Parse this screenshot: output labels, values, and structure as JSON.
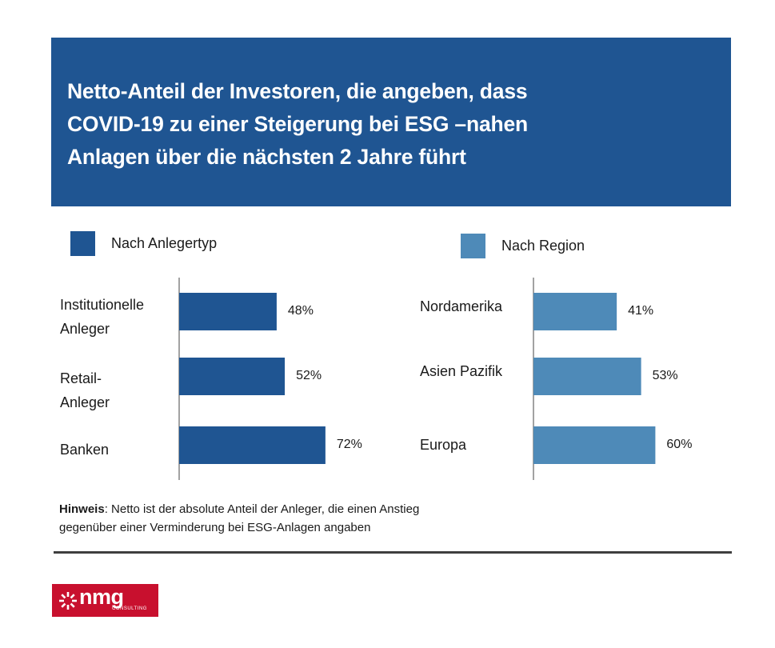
{
  "header": {
    "title_line1": "Netto-Anteil der Investoren, die angeben, dass",
    "title_line2": "COVID-19 zu einer Steigerung bei ESG –nahen",
    "title_line3": "Anlagen über die nächsten 2 Jahre führt"
  },
  "colors": {
    "header_bg": "#1f5592",
    "series_anlegertyp": "#1f5592",
    "series_region": "#4e8ab8",
    "logo_bg": "#c8102e"
  },
  "chart_data": [
    {
      "type": "bar",
      "orientation": "horizontal",
      "legend": "Nach Anlegertyp",
      "categories": [
        "Institutionelle\nAnleger",
        "Retail-\nAnleger",
        "Banken"
      ],
      "values": [
        48,
        52,
        72
      ],
      "data_labels": [
        "48%",
        "52%",
        "72%"
      ],
      "unit": "%",
      "xlim": [
        0,
        100
      ],
      "grid": false
    },
    {
      "type": "bar",
      "orientation": "horizontal",
      "legend": "Nach Region",
      "categories": [
        "Nordamerika",
        "Asien Pazifik",
        "Europa"
      ],
      "values": [
        41,
        53,
        60
      ],
      "data_labels": [
        "41%",
        "53%",
        "60%"
      ],
      "unit": "%",
      "xlim": [
        0,
        100
      ],
      "grid": false
    }
  ],
  "note": {
    "label": "Hinweis",
    "text_line1": ": Netto ist der absolute Anteil der Anleger, die einen Anstieg",
    "text_line2": "gegenüber einer Verminderung bei ESG-Anlagen angaben"
  },
  "logo": {
    "brand": "nmg",
    "sub": "CONSULTING"
  }
}
